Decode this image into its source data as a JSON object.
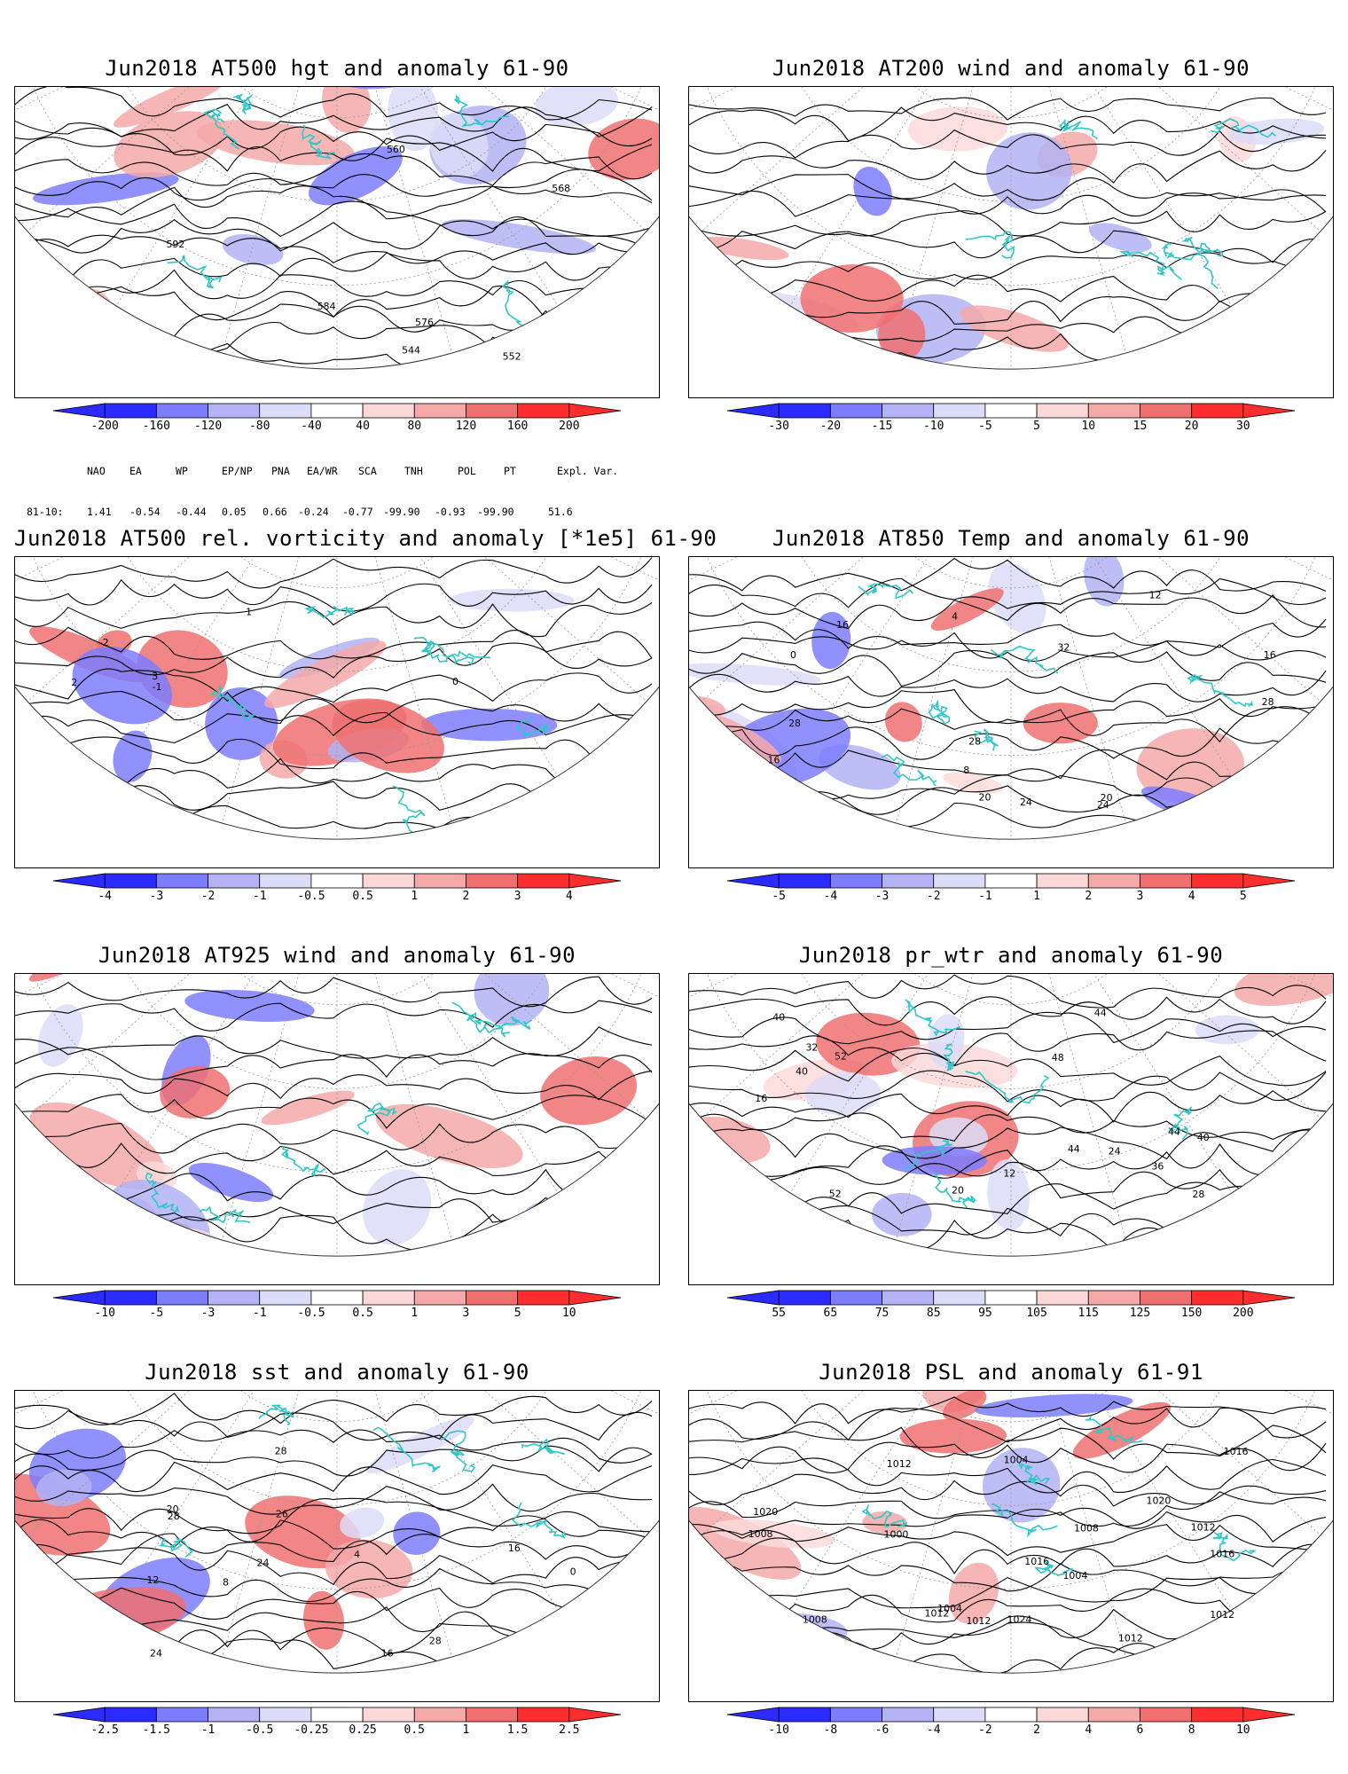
{
  "palette": {
    "coast": "#2fc7c7",
    "contour": "#000000",
    "blue_strong": "#2b2bff",
    "blue_mid": "#7d7dff",
    "blue_light": "#b3b3f5",
    "blue_pale": "#dcdcf8",
    "red_pale": "#fbd9d9",
    "red_light": "#f5a9a9",
    "red_mid": "#f07070",
    "red_strong": "#ff2e2e"
  },
  "panels": [
    {
      "id": "hgt500",
      "title": "Jun2018 AT500 hgt and anomaly 61-90",
      "colorbar": [
        "-200",
        "-160",
        "-120",
        "-80",
        "-40",
        "40",
        "80",
        "120",
        "160",
        "200"
      ],
      "contour_labels": [
        "544",
        "552",
        "560",
        "568",
        "576",
        "584",
        "592"
      ]
    },
    {
      "id": "wind200",
      "title": "Jun2018 AT200 wind and anomaly 61-90",
      "colorbar": [
        "-30",
        "-20",
        "-15",
        "-10",
        "-5",
        "5",
        "10",
        "15",
        "20",
        "30"
      ],
      "contour_labels": []
    },
    {
      "id": "vort500",
      "title": "Jun2018 AT500 rel. vorticity and anomaly [*1e5] 61-90",
      "colorbar": [
        "-4",
        "-3",
        "-2",
        "-1",
        "-0.5",
        "0.5",
        "1",
        "2",
        "3",
        "4"
      ],
      "contour_labels": [
        "-1",
        "0",
        "1",
        "2",
        "3",
        "-2"
      ]
    },
    {
      "id": "temp850",
      "title": "Jun2018 AT850 Temp and anomaly 61-90",
      "colorbar": [
        "-5",
        "-4",
        "-3",
        "-2",
        "-1",
        "1",
        "2",
        "3",
        "4",
        "5"
      ],
      "contour_labels": [
        "16",
        "20",
        "4",
        "0",
        "12",
        "8",
        "16",
        "24",
        "28",
        "32",
        "16",
        "28",
        "24",
        "20",
        "28"
      ]
    },
    {
      "id": "wind925",
      "title": "Jun2018 AT925 wind and anomaly 61-90",
      "colorbar": [
        "-10",
        "-5",
        "-3",
        "-1",
        "-0.5",
        "0.5",
        "1",
        "3",
        "5",
        "10"
      ],
      "contour_labels": []
    },
    {
      "id": "prwtr",
      "title": "Jun2018 pr_wtr and anomaly 61-90",
      "colorbar": [
        "55",
        "65",
        "75",
        "85",
        "95",
        "105",
        "115",
        "125",
        "150",
        "200"
      ],
      "contour_labels": [
        "44",
        "52",
        "40",
        "32",
        "12",
        "16",
        "20",
        "24",
        "28",
        "36",
        "40",
        "44",
        "48",
        "40",
        "44",
        "52"
      ]
    },
    {
      "id": "sst",
      "title": "Jun2018 sst and anomaly 61-90",
      "colorbar": [
        "-2.5",
        "-1.5",
        "-1",
        "-0.5",
        "-0.25",
        "0.25",
        "0.5",
        "1",
        "1.5",
        "2.5"
      ],
      "contour_labels": [
        "28",
        "24",
        "16",
        "12",
        "8",
        "4",
        "0",
        "20",
        "24",
        "28",
        "28",
        "26",
        "16"
      ]
    },
    {
      "id": "psl",
      "title": "Jun2018 PSL and anomaly 61-91",
      "colorbar": [
        "-10",
        "-8",
        "-6",
        "-4",
        "-2",
        "2",
        "4",
        "6",
        "8",
        "10"
      ],
      "contour_labels": [
        "1012",
        "1016",
        "1008",
        "1004",
        "1004",
        "1008",
        "1012",
        "1020",
        "1024",
        "1016",
        "1020",
        "1012",
        "1000",
        "1004",
        "1008",
        "1012",
        "1012",
        "1016",
        "1012"
      ]
    }
  ],
  "teleconnections": {
    "headers": [
      "NAO",
      "EA",
      "WP",
      "EP/NP",
      "PNA",
      "EA/WR",
      "SCA",
      "TNH",
      "POL",
      "PT",
      "Expl. Var."
    ],
    "row_label": "81-10:",
    "values": [
      "1.41",
      "-0.54",
      "-0.44",
      "0.05",
      "0.66",
      "-0.24",
      "-0.77",
      "-99.90",
      "-0.93",
      "-99.90",
      "51.6"
    ]
  }
}
